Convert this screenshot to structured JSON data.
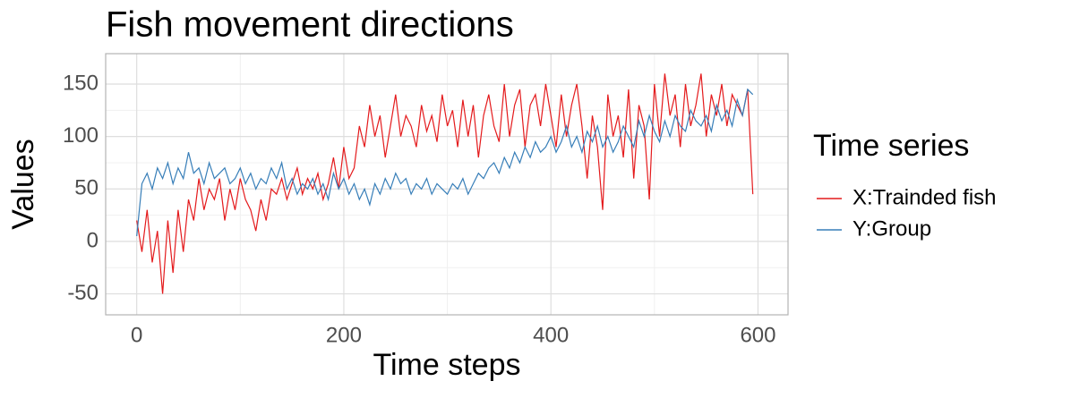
{
  "chart_data": {
    "type": "line",
    "title": "Fish movement directions",
    "x_label": "Time steps",
    "y_label": "Values",
    "legend_title": "Time series",
    "legend_position": "right",
    "grid": true,
    "xlim": [
      -30,
      629
    ],
    "ylim": [
      -70,
      179
    ],
    "xticks": [
      0,
      200,
      400,
      600
    ],
    "yticks": [
      -50,
      0,
      50,
      100,
      150
    ],
    "x": [
      0,
      5,
      10,
      15,
      20,
      25,
      30,
      35,
      40,
      45,
      50,
      55,
      60,
      65,
      70,
      75,
      80,
      85,
      90,
      95,
      100,
      105,
      110,
      115,
      120,
      125,
      130,
      135,
      140,
      145,
      150,
      155,
      160,
      165,
      170,
      175,
      180,
      185,
      190,
      195,
      200,
      205,
      210,
      215,
      220,
      225,
      230,
      235,
      240,
      245,
      250,
      255,
      260,
      265,
      270,
      275,
      280,
      285,
      290,
      295,
      300,
      305,
      310,
      315,
      320,
      325,
      330,
      335,
      340,
      345,
      350,
      355,
      360,
      365,
      370,
      375,
      380,
      385,
      390,
      395,
      400,
      405,
      410,
      415,
      420,
      425,
      430,
      435,
      440,
      445,
      450,
      455,
      460,
      465,
      470,
      475,
      480,
      485,
      490,
      495,
      500,
      505,
      510,
      515,
      520,
      525,
      530,
      535,
      540,
      545,
      550,
      555,
      560,
      565,
      570,
      575,
      580,
      585,
      590,
      595
    ],
    "series": [
      {
        "name": "X:Trainded fish",
        "color": "#e41a1c",
        "values": [
          20,
          -10,
          30,
          -20,
          10,
          -50,
          20,
          -30,
          30,
          -10,
          40,
          20,
          60,
          30,
          50,
          40,
          60,
          20,
          50,
          30,
          60,
          40,
          30,
          10,
          40,
          20,
          50,
          45,
          60,
          40,
          55,
          70,
          45,
          60,
          50,
          65,
          40,
          55,
          80,
          50,
          90,
          60,
          70,
          110,
          90,
          130,
          100,
          120,
          80,
          110,
          140,
          100,
          120,
          110,
          90,
          130,
          105,
          120,
          95,
          140,
          110,
          125,
          90,
          135,
          100,
          130,
          80,
          120,
          140,
          110,
          95,
          150,
          100,
          130,
          145,
          90,
          130,
          140,
          110,
          150,
          120,
          90,
          140,
          100,
          130,
          150,
          110,
          60,
          120,
          90,
          30,
          140,
          100,
          120,
          80,
          145,
          60,
          130,
          110,
          40,
          150,
          100,
          160,
          120,
          140,
          90,
          150,
          110,
          130,
          160,
          100,
          140,
          120,
          150,
          110,
          140,
          130,
          120,
          145,
          45
        ]
      },
      {
        "name": "Y:Group",
        "color": "#377eb8",
        "values": [
          5,
          55,
          65,
          50,
          70,
          60,
          75,
          55,
          70,
          60,
          85,
          65,
          70,
          55,
          75,
          60,
          65,
          70,
          55,
          60,
          70,
          55,
          65,
          50,
          60,
          55,
          70,
          60,
          75,
          50,
          60,
          45,
          55,
          50,
          60,
          45,
          55,
          40,
          65,
          50,
          60,
          45,
          55,
          40,
          50,
          35,
          55,
          45,
          60,
          50,
          65,
          55,
          60,
          45,
          55,
          50,
          60,
          45,
          55,
          50,
          45,
          55,
          50,
          60,
          45,
          55,
          65,
          60,
          70,
          75,
          65,
          80,
          70,
          85,
          75,
          90,
          80,
          95,
          85,
          90,
          100,
          85,
          95,
          110,
          90,
          100,
          85,
          105,
          95,
          110,
          90,
          100,
          85,
          95,
          110,
          100,
          90,
          115,
          100,
          120,
          105,
          95,
          115,
          100,
          120,
          110,
          105,
          125,
          115,
          110,
          120,
          105,
          130,
          115,
          125,
          110,
          135,
          120,
          145,
          140
        ]
      }
    ]
  }
}
